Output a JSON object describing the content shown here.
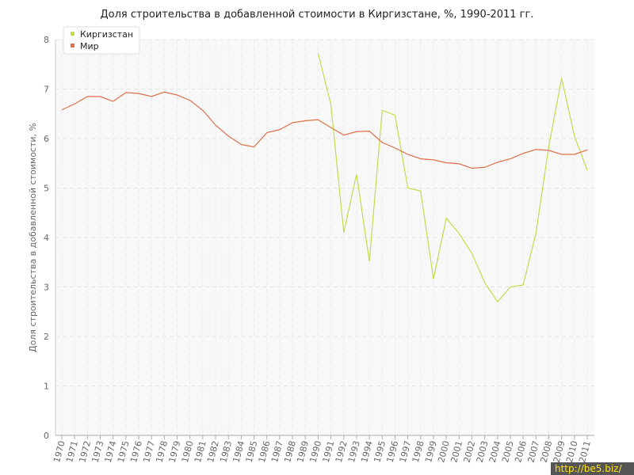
{
  "chart_data": {
    "type": "line",
    "title": "Доля строительства в добавленной стоимости в Киргизстане, %, 1990-2011 гг.",
    "y_label": "Доля строительства в добавленной стоимости, %",
    "categories": [
      "1970",
      "1971",
      "1972",
      "1973",
      "1974",
      "1975",
      "1976",
      "1977",
      "1978",
      "1979",
      "1980",
      "1981",
      "1982",
      "1983",
      "1984",
      "1985",
      "1986",
      "1987",
      "1988",
      "1989",
      "1990",
      "1991",
      "1992",
      "1993",
      "1994",
      "1995",
      "1996",
      "1997",
      "1998",
      "1999",
      "2000",
      "2001",
      "2002",
      "2003",
      "2004",
      "2005",
      "2006",
      "2007",
      "2008",
      "2009",
      "2010",
      "2011"
    ],
    "series": [
      {
        "name": "Киргизстан",
        "color": "#c3dc4e",
        "values": [
          null,
          null,
          null,
          null,
          null,
          null,
          null,
          null,
          null,
          null,
          null,
          null,
          null,
          null,
          null,
          null,
          null,
          null,
          null,
          null,
          7.73,
          6.68,
          4.1,
          5.28,
          3.52,
          6.57,
          6.47,
          5.0,
          4.94,
          3.16,
          4.39,
          4.08,
          3.68,
          3.09,
          2.7,
          3.0,
          3.04,
          4.09,
          5.84,
          7.22,
          6.05,
          5.36
        ]
      },
      {
        "name": "Мир",
        "color": "#e0704a",
        "values": [
          6.58,
          6.7,
          6.85,
          6.85,
          6.75,
          6.93,
          6.91,
          6.85,
          6.94,
          6.88,
          6.77,
          6.57,
          6.27,
          6.05,
          5.88,
          5.83,
          6.12,
          6.18,
          6.32,
          6.36,
          6.38,
          6.22,
          6.07,
          6.14,
          6.15,
          5.92,
          5.81,
          5.68,
          5.59,
          5.57,
          5.51,
          5.49,
          5.4,
          5.42,
          5.52,
          5.59,
          5.7,
          5.78,
          5.76,
          5.68,
          5.68,
          5.77
        ]
      }
    ],
    "ylim": [
      0,
      8
    ],
    "yticks": [
      0,
      1,
      2,
      3,
      4,
      5,
      6,
      7,
      8
    ],
    "grid": true,
    "legend": "top-left"
  },
  "watermark": "http://be5.biz/"
}
